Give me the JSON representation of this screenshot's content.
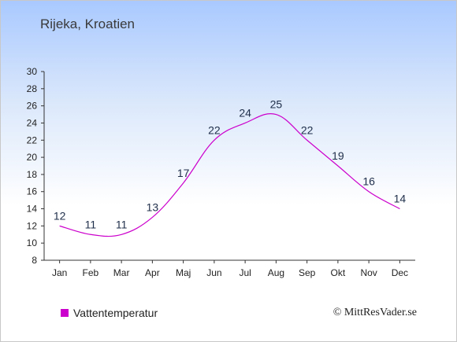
{
  "title": "Rijeka, Kroatien",
  "legend": {
    "label": "Vattentemperatur",
    "color": "#cc00cc"
  },
  "copyright": "© MittResVader.se",
  "chart_data": {
    "type": "line",
    "categories": [
      "Jan",
      "Feb",
      "Mar",
      "Apr",
      "Maj",
      "Jun",
      "Jul",
      "Aug",
      "Sep",
      "Okt",
      "Nov",
      "Dec"
    ],
    "series": [
      {
        "name": "Vattentemperatur",
        "values": [
          12,
          11,
          11,
          13,
          17,
          22,
          24,
          25,
          22,
          19,
          16,
          14
        ],
        "color": "#cc00cc"
      }
    ],
    "data_labels": [
      "12",
      "11",
      "11",
      "13",
      "17",
      "22",
      "24",
      "25",
      "22",
      "19",
      "16",
      "14"
    ],
    "ylim": [
      8,
      30
    ],
    "yticks": [
      8,
      10,
      12,
      14,
      16,
      18,
      20,
      22,
      24,
      26,
      28,
      30
    ],
    "ytick_labels": [
      "8",
      "10",
      "12",
      "14",
      "16",
      "18",
      "20",
      "22",
      "24",
      "26",
      "28",
      "30"
    ],
    "grid": false,
    "legend_position": "bottom-left",
    "xlabel": "",
    "ylabel": ""
  }
}
